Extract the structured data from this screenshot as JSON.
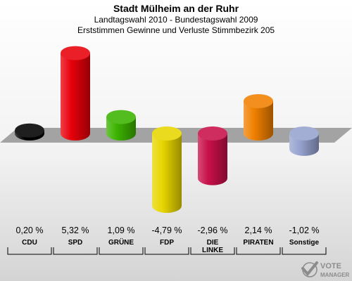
{
  "header": {
    "title": "Stadt Mülheim an der Ruhr",
    "subtitle1": "Landtagswahl 2010 - Bundestagswahl 2009",
    "subtitle2": "Erststimmen Gewinne und Verluste Stimmbezirk 205"
  },
  "chart_data": {
    "type": "bar",
    "categories": [
      "CDU",
      "SPD",
      "GRÜNE",
      "FDP",
      "DIE LINKE",
      "PIRATEN",
      "Sonstige"
    ],
    "category_lines": [
      [
        "CDU"
      ],
      [
        "SPD"
      ],
      [
        "GRÜNE"
      ],
      [
        "FDP"
      ],
      [
        "DIE",
        "LINKE"
      ],
      [
        "PIRATEN"
      ],
      [
        "Sonstige"
      ]
    ],
    "values": [
      0.2,
      5.32,
      1.09,
      -4.79,
      -2.96,
      2.14,
      -1.02
    ],
    "value_labels": [
      "0,20 %",
      "5,32 %",
      "1,09 %",
      "-4,79 %",
      "-2,96 %",
      "2,14 %",
      "-1,02 %"
    ],
    "colors": [
      "#000000",
      "#e8000a",
      "#3cb300",
      "#e8d600",
      "#c8104a",
      "#f08000",
      "#97a3cf"
    ],
    "ylim": [
      -4.79,
      5.32
    ]
  },
  "logo": {
    "text1": "VOTE",
    "text2": "MANAGER"
  }
}
